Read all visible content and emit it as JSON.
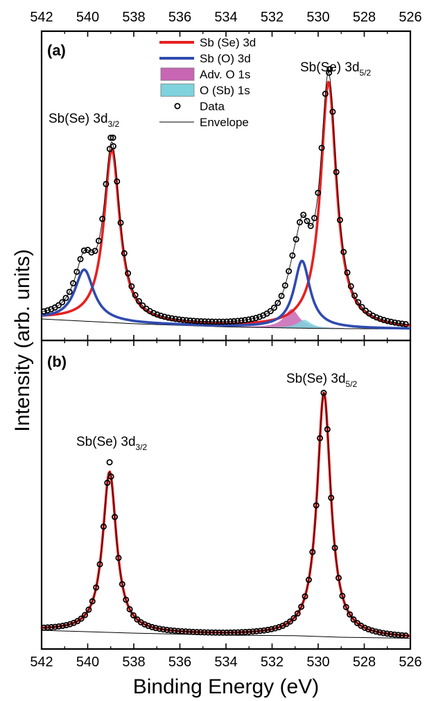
{
  "chart_data": [
    {
      "panel": "(a)",
      "type": "line",
      "x_range": [
        542,
        526
      ],
      "x_ticks": [
        542,
        540,
        538,
        536,
        534,
        532,
        530,
        528,
        526
      ],
      "ylabel": "Intensity (arb. units)",
      "legend_placement": "top-center",
      "legend": [
        {
          "label": "Sb (Se) 3d",
          "kind": "line",
          "color": "#e62020"
        },
        {
          "label": "Sb (O) 3d",
          "kind": "line",
          "color": "#2f4bb0"
        },
        {
          "label": "Adv. O 1s",
          "kind": "fill",
          "color": "#c866b4"
        },
        {
          "label": "O (Sb) 1s",
          "kind": "fill",
          "color": "#7fd3dc"
        },
        {
          "label": "Data",
          "kind": "marker",
          "color": "#000000"
        },
        {
          "label": "Envelope",
          "kind": "thinline",
          "color": "#000000"
        }
      ],
      "annotations": [
        {
          "base": "Sb(Se) 3d",
          "sub": "3/2",
          "x": 539.0
        },
        {
          "base": "Sb(Se) 3d",
          "sub": "5/2",
          "x": 529.5
        }
      ],
      "background": [
        [
          542,
          0.042
        ],
        [
          538,
          0.024
        ],
        [
          534,
          0.012
        ],
        [
          530,
          0.006
        ],
        [
          526,
          0.004
        ]
      ],
      "components": [
        {
          "name": "Sb (Se) 3d",
          "color": "#e62020",
          "peaks": [
            {
              "center": 538.95,
              "height": 0.655,
              "width": 0.42
            },
            {
              "center": 529.55,
              "height": 0.935,
              "width": 0.42
            }
          ]
        },
        {
          "name": "Sb (O) 3d",
          "color": "#2f4bb0",
          "peaks": [
            {
              "center": 540.15,
              "height": 0.195,
              "width": 0.5
            },
            {
              "center": 530.7,
              "height": 0.255,
              "width": 0.42
            }
          ]
        },
        {
          "name": "Adv. O 1s",
          "color": "#c866b4",
          "peaks": [
            {
              "center": 531.15,
              "height": 0.072,
              "width": 0.38
            }
          ]
        },
        {
          "name": "O (Sb) 1s",
          "color": "#7fd3dc",
          "peaks": [
            {
              "center": 530.6,
              "height": 0.032,
              "width": 0.35
            }
          ]
        }
      ],
      "data_points": {
        "x_start": 541.9,
        "x_end": 526.2,
        "count": 100,
        "extra": [
          {
            "x": 539.0,
            "y": 0.73
          },
          {
            "x": 538.9,
            "y": 0.73
          },
          {
            "x": 529.5,
            "y": 0.99
          }
        ]
      }
    },
    {
      "panel": "(b)",
      "type": "line",
      "x_range": [
        542,
        526
      ],
      "x_ticks": [
        542,
        540,
        538,
        536,
        534,
        532,
        530,
        528,
        526
      ],
      "xlabel": "Binding Energy (eV)",
      "annotations": [
        {
          "base": "Sb(Se) 3d",
          "sub": "3/2",
          "x": 539.0
        },
        {
          "base": "Sb(Se) 3d",
          "sub": "5/2",
          "x": 529.7
        }
      ],
      "background": [
        [
          542,
          0.035
        ],
        [
          538,
          0.024
        ],
        [
          534,
          0.016
        ],
        [
          531,
          0.014
        ],
        [
          529,
          0.008
        ],
        [
          526,
          0.004
        ]
      ],
      "components": [
        {
          "name": "Sb (Se) 3d",
          "color": "#e62020",
          "peaks": [
            {
              "center": 539.05,
              "height": 0.625,
              "width": 0.36
            },
            {
              "center": 529.75,
              "height": 0.95,
              "width": 0.36
            }
          ]
        }
      ],
      "data_points": {
        "x_start": 541.9,
        "x_end": 526.2,
        "count": 98,
        "extra": [
          {
            "x": 539.05,
            "y": 0.69
          }
        ]
      }
    }
  ]
}
